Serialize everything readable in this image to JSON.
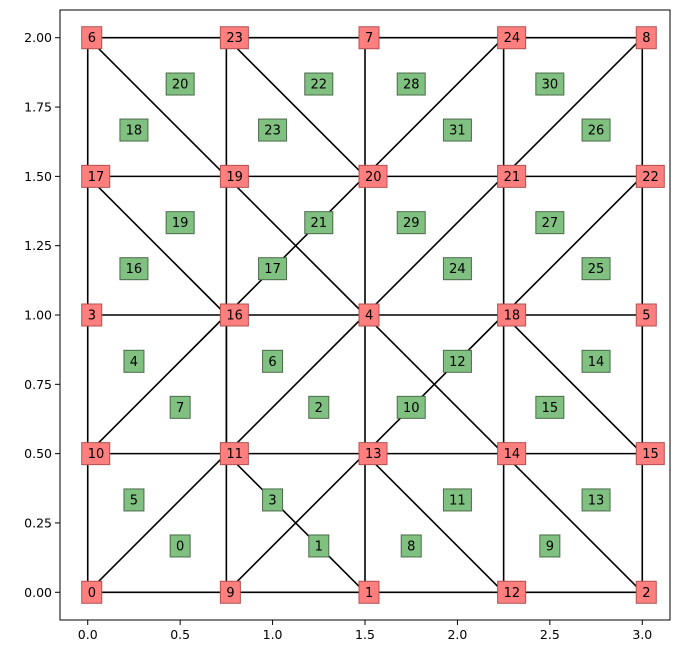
{
  "chart_data": {
    "type": "mesh",
    "title": "",
    "xlabel": "",
    "ylabel": "",
    "xlim": [
      -0.15,
      3.15
    ],
    "ylim": [
      -0.1,
      2.1
    ],
    "xticks": [
      "0.0",
      "0.5",
      "1.0",
      "1.5",
      "2.0",
      "2.5",
      "3.0"
    ],
    "yticks": [
      "0.00",
      "0.25",
      "0.50",
      "0.75",
      "1.00",
      "1.25",
      "1.50",
      "1.75",
      "2.00"
    ],
    "colors": {
      "node": "#ff7f7f",
      "element": "#80c080",
      "edge": "#000000"
    },
    "nodes": [
      {
        "id": "0",
        "x": 0.0,
        "y": 0.0
      },
      {
        "id": "1",
        "x": 1.5,
        "y": 0.0
      },
      {
        "id": "2",
        "x": 3.0,
        "y": 0.0
      },
      {
        "id": "3",
        "x": 0.0,
        "y": 1.0
      },
      {
        "id": "4",
        "x": 1.5,
        "y": 1.0
      },
      {
        "id": "5",
        "x": 3.0,
        "y": 1.0
      },
      {
        "id": "6",
        "x": 0.0,
        "y": 2.0
      },
      {
        "id": "7",
        "x": 1.5,
        "y": 2.0
      },
      {
        "id": "8",
        "x": 3.0,
        "y": 2.0
      },
      {
        "id": "9",
        "x": 0.75,
        "y": 0.0
      },
      {
        "id": "10",
        "x": 0.0,
        "y": 0.5
      },
      {
        "id": "11",
        "x": 0.75,
        "y": 0.5
      },
      {
        "id": "12",
        "x": 2.25,
        "y": 0.0
      },
      {
        "id": "13",
        "x": 1.5,
        "y": 0.5
      },
      {
        "id": "14",
        "x": 2.25,
        "y": 0.5
      },
      {
        "id": "15",
        "x": 3.0,
        "y": 0.5
      },
      {
        "id": "16",
        "x": 0.75,
        "y": 1.0
      },
      {
        "id": "17",
        "x": 0.0,
        "y": 1.5
      },
      {
        "id": "18",
        "x": 2.25,
        "y": 1.0
      },
      {
        "id": "19",
        "x": 0.75,
        "y": 1.5
      },
      {
        "id": "20",
        "x": 1.5,
        "y": 1.5
      },
      {
        "id": "21",
        "x": 2.25,
        "y": 1.5
      },
      {
        "id": "22",
        "x": 3.0,
        "y": 1.5
      },
      {
        "id": "23",
        "x": 0.75,
        "y": 2.0
      },
      {
        "id": "24",
        "x": 2.25,
        "y": 2.0
      }
    ],
    "node_labels": [
      {
        "text": "0",
        "x": 0.0,
        "y": 0.0
      },
      {
        "text": "1",
        "x": 1.5,
        "y": 0.0
      },
      {
        "text": "2",
        "x": 3.0,
        "y": 0.0
      },
      {
        "text": "3",
        "x": 0.0,
        "y": 1.0
      },
      {
        "text": "4",
        "x": 1.5,
        "y": 1.0
      },
      {
        "text": "5",
        "x": 3.0,
        "y": 1.0
      },
      {
        "text": "6",
        "x": 0.0,
        "y": 2.0
      },
      {
        "text": "7",
        "x": 1.5,
        "y": 2.0
      },
      {
        "text": "8",
        "x": 3.0,
        "y": 2.0
      },
      {
        "text": "9",
        "x": 0.75,
        "y": 0.0
      },
      {
        "text": "10",
        "x": 0.0,
        "y": 0.5
      },
      {
        "text": "11",
        "x": 0.75,
        "y": 0.5
      },
      {
        "text": "12",
        "x": 2.25,
        "y": 0.0
      },
      {
        "text": "13",
        "x": 1.5,
        "y": 0.5
      },
      {
        "text": "14",
        "x": 2.25,
        "y": 0.5
      },
      {
        "text": "15",
        "x": 3.0,
        "y": 0.5
      },
      {
        "text": "16",
        "x": 0.75,
        "y": 1.0
      },
      {
        "text": "17",
        "x": 0.0,
        "y": 1.5
      },
      {
        "text": "18",
        "x": 2.25,
        "y": 1.0
      },
      {
        "text": "19",
        "x": 0.75,
        "y": 1.5
      },
      {
        "text": "20",
        "x": 1.5,
        "y": 1.5
      },
      {
        "text": "21",
        "x": 2.25,
        "y": 1.5
      },
      {
        "text": "22",
        "x": 3.0,
        "y": 1.5
      },
      {
        "text": "23",
        "x": 0.75,
        "y": 2.0
      },
      {
        "text": "24",
        "x": 2.25,
        "y": 2.0
      }
    ],
    "edges": [
      [
        "0",
        "9"
      ],
      [
        "9",
        "1"
      ],
      [
        "1",
        "12"
      ],
      [
        "12",
        "2"
      ],
      [
        "10",
        "11"
      ],
      [
        "11",
        "13"
      ],
      [
        "13",
        "14"
      ],
      [
        "14",
        "15"
      ],
      [
        "3",
        "16"
      ],
      [
        "16",
        "4"
      ],
      [
        "4",
        "18"
      ],
      [
        "18",
        "5"
      ],
      [
        "17",
        "19"
      ],
      [
        "19",
        "20"
      ],
      [
        "20",
        "21"
      ],
      [
        "21",
        "22"
      ],
      [
        "6",
        "23"
      ],
      [
        "23",
        "7"
      ],
      [
        "7",
        "24"
      ],
      [
        "24",
        "8"
      ],
      [
        "0",
        "10"
      ],
      [
        "10",
        "3"
      ],
      [
        "3",
        "17"
      ],
      [
        "17",
        "6"
      ],
      [
        "9",
        "11"
      ],
      [
        "11",
        "16"
      ],
      [
        "16",
        "19"
      ],
      [
        "19",
        "23"
      ],
      [
        "1",
        "13"
      ],
      [
        "13",
        "4"
      ],
      [
        "4",
        "20"
      ],
      [
        "20",
        "7"
      ],
      [
        "12",
        "14"
      ],
      [
        "14",
        "18"
      ],
      [
        "18",
        "21"
      ],
      [
        "21",
        "24"
      ],
      [
        "2",
        "15"
      ],
      [
        "15",
        "5"
      ],
      [
        "5",
        "22"
      ],
      [
        "22",
        "8"
      ],
      [
        "0",
        "11"
      ],
      [
        "11",
        "4"
      ],
      [
        "4",
        "21"
      ],
      [
        "21",
        "8"
      ],
      [
        "9",
        "13"
      ],
      [
        "13",
        "18"
      ],
      [
        "18",
        "22"
      ],
      [
        "10",
        "16"
      ],
      [
        "16",
        "20"
      ],
      [
        "20",
        "24"
      ],
      [
        "6",
        "19"
      ],
      [
        "19",
        "4"
      ],
      [
        "4",
        "14"
      ],
      [
        "14",
        "2"
      ],
      [
        "17",
        "16"
      ],
      [
        "16",
        "11"
      ],
      [
        "23",
        "20"
      ],
      [
        "13",
        "12"
      ],
      [
        "18",
        "15"
      ],
      [
        "11",
        "1"
      ]
    ],
    "elements": [
      {
        "id": "0",
        "x": 0.5,
        "y": 0.167
      },
      {
        "id": "1",
        "x": 1.25,
        "y": 0.167
      },
      {
        "id": "2",
        "x": 1.25,
        "y": 0.667
      },
      {
        "id": "3",
        "x": 1.0,
        "y": 0.333
      },
      {
        "id": "4",
        "x": 0.25,
        "y": 0.833
      },
      {
        "id": "5",
        "x": 0.25,
        "y": 0.333
      },
      {
        "id": "6",
        "x": 1.0,
        "y": 0.833
      },
      {
        "id": "7",
        "x": 0.5,
        "y": 0.667
      },
      {
        "id": "8",
        "x": 1.75,
        "y": 0.167
      },
      {
        "id": "9",
        "x": 2.5,
        "y": 0.167
      },
      {
        "id": "10",
        "x": 1.75,
        "y": 0.667
      },
      {
        "id": "11",
        "x": 2.0,
        "y": 0.333
      },
      {
        "id": "12",
        "x": 2.0,
        "y": 0.833
      },
      {
        "id": "13",
        "x": 2.75,
        "y": 0.333
      },
      {
        "id": "14",
        "x": 2.75,
        "y": 0.833
      },
      {
        "id": "15",
        "x": 2.5,
        "y": 0.667
      },
      {
        "id": "16",
        "x": 0.25,
        "y": 1.167
      },
      {
        "id": "17",
        "x": 1.0,
        "y": 1.167
      },
      {
        "id": "18",
        "x": 0.25,
        "y": 1.667
      },
      {
        "id": "19",
        "x": 0.5,
        "y": 1.333
      },
      {
        "id": "20",
        "x": 0.5,
        "y": 1.833
      },
      {
        "id": "21",
        "x": 1.25,
        "y": 1.333
      },
      {
        "id": "22",
        "x": 1.25,
        "y": 1.833
      },
      {
        "id": "23",
        "x": 1.0,
        "y": 1.667
      },
      {
        "id": "24",
        "x": 2.0,
        "y": 1.167
      },
      {
        "id": "25",
        "x": 2.75,
        "y": 1.167
      },
      {
        "id": "26",
        "x": 2.75,
        "y": 1.667
      },
      {
        "id": "27",
        "x": 2.5,
        "y": 1.333
      },
      {
        "id": "28",
        "x": 1.75,
        "y": 1.833
      },
      {
        "id": "29",
        "x": 1.75,
        "y": 1.333
      },
      {
        "id": "30",
        "x": 2.5,
        "y": 1.833
      },
      {
        "id": "31",
        "x": 2.0,
        "y": 1.667
      }
    ]
  }
}
